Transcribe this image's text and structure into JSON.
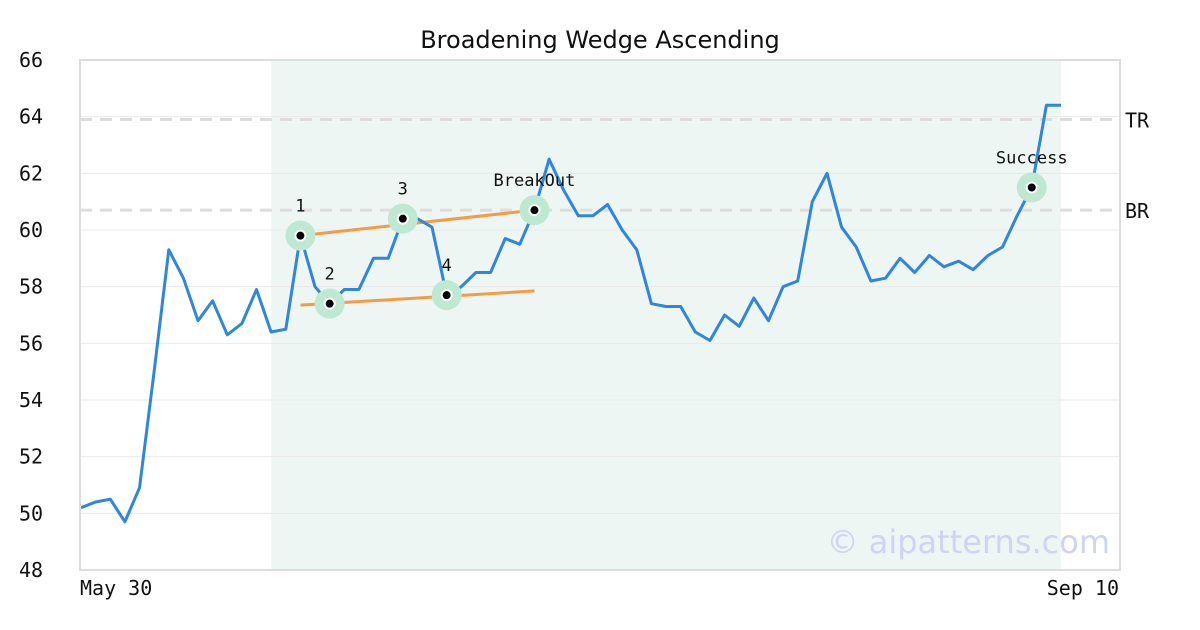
{
  "chart_data": {
    "type": "line",
    "title": "Broadening Wedge Ascending",
    "xlabel": "",
    "ylabel": "",
    "ylim": [
      48,
      66
    ],
    "y_ticks": [
      "48",
      "50",
      "52",
      "54",
      "56",
      "58",
      "60",
      "62",
      "64",
      "66"
    ],
    "x_tick_labels": [
      "May 30",
      "Sep 10"
    ],
    "grid": "horizontal",
    "series": [
      {
        "values": [
          50.2,
          50.4,
          50.5,
          49.7,
          50.9,
          55.0,
          59.3,
          58.3,
          56.8,
          57.5,
          56.3,
          56.7,
          57.9,
          56.4,
          56.5,
          59.8,
          58.0,
          57.4,
          57.9,
          57.9,
          59.0,
          59.0,
          60.4,
          60.4,
          60.1,
          57.7,
          58.0,
          58.5,
          58.5,
          59.7,
          59.5,
          60.7,
          62.5,
          61.4,
          60.5,
          60.5,
          60.9,
          60.0,
          59.3,
          57.4,
          57.3,
          57.3,
          56.4,
          56.1,
          57.0,
          56.6,
          57.6,
          56.8,
          58.0,
          58.2,
          61.0,
          62.0,
          60.1,
          59.4,
          58.2,
          58.3,
          59.0,
          58.5,
          59.1,
          58.7,
          58.9,
          58.6,
          59.1,
          59.4,
          60.5,
          61.5,
          64.4,
          64.4
        ],
        "color": "#2e86de"
      }
    ],
    "pattern_region": {
      "start_index": 13,
      "end_index": 67,
      "color": "#eef6f3"
    },
    "levels": [
      {
        "label": "TR",
        "value": 63.9
      },
      {
        "label": "BR",
        "value": 60.7
      }
    ],
    "points": [
      {
        "label": "1",
        "index": 15,
        "value": 59.8
      },
      {
        "label": "2",
        "index": 17,
        "value": 57.4
      },
      {
        "label": "3",
        "index": 22,
        "value": 60.4
      },
      {
        "label": "4",
        "index": 25,
        "value": 57.7
      },
      {
        "label": "BreakOut",
        "index": 31,
        "value": 60.7
      },
      {
        "label": "Success",
        "index": 65,
        "value": 61.5
      }
    ],
    "trendlines": [
      {
        "name": "upper",
        "from": {
          "index": 15,
          "value": 59.8
        },
        "to": {
          "index": 31,
          "value": 60.7
        }
      },
      {
        "name": "lower",
        "from": {
          "index": 15,
          "value": 57.35
        },
        "to": {
          "index": 31,
          "value": 57.85
        }
      }
    ],
    "trendline_color": "#f39c45",
    "marker_halo_color": "#bfe8d3",
    "line_color": "#2e86de",
    "watermark": "© aipatterns.com"
  }
}
